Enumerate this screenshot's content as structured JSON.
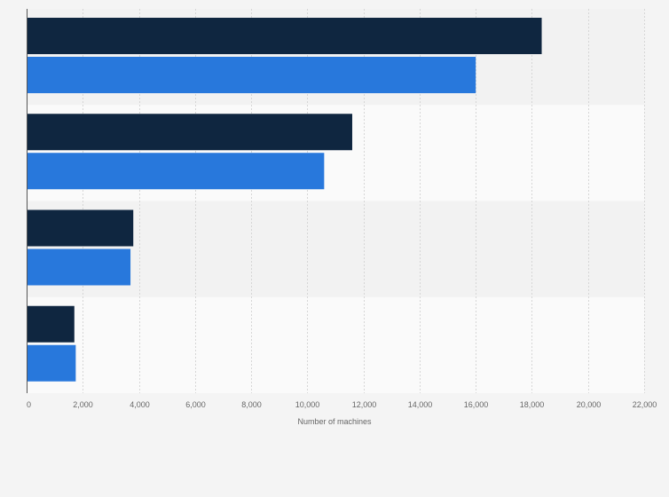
{
  "chart_data": {
    "type": "bar",
    "orientation": "horizontal",
    "categories": [
      "",
      "",
      "",
      ""
    ],
    "series": [
      {
        "color": "#0f2640",
        "values": [
          18350,
          11600,
          3800,
          1700
        ]
      },
      {
        "color": "#2878dc",
        "values": [
          16000,
          10600,
          3700,
          1750
        ]
      }
    ],
    "x_ticks": [
      0,
      2000,
      4000,
      6000,
      8000,
      10000,
      12000,
      14000,
      16000,
      18000,
      20000,
      22000
    ],
    "x_tick_labels": [
      "0",
      "2,000",
      "4,000",
      "6,000",
      "8,000",
      "10,000",
      "12,000",
      "14,000",
      "16,000",
      "18,000",
      "20,000",
      "22,000"
    ],
    "xlim": [
      0,
      22000
    ],
    "xlabel": "Number of machines",
    "ylabel": "",
    "title": "",
    "grid": true,
    "legend": "none"
  }
}
